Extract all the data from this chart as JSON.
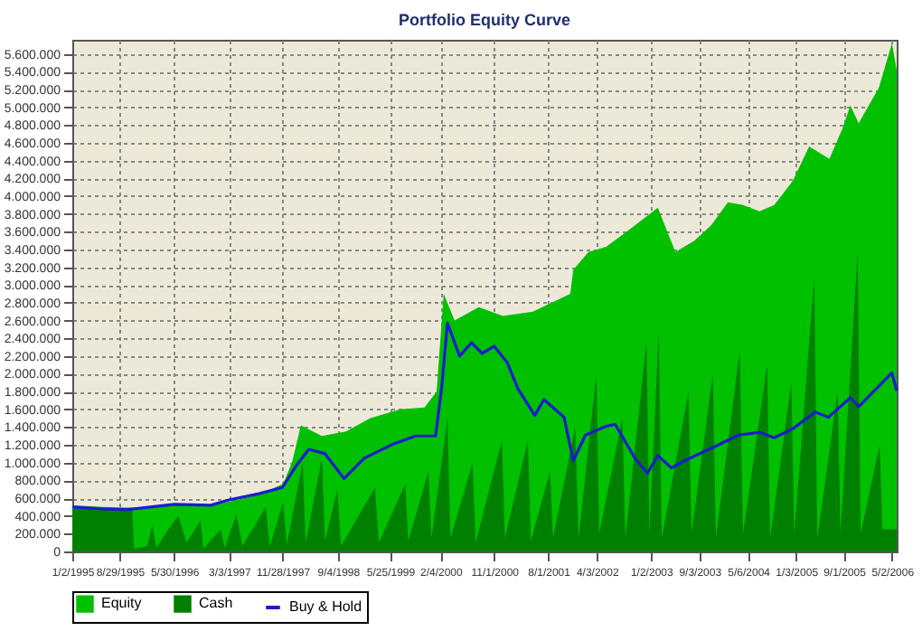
{
  "chart_data": {
    "type": "area",
    "title": "Portfolio Equity Curve",
    "xlim": [
      "1995-01-02",
      "2006-05-26"
    ],
    "xticks": [
      {
        "value": "1995-01-02",
        "label": "1/2/1995"
      },
      {
        "value": "1995-08-29",
        "label": "8/29/1995"
      },
      {
        "value": "1996-05-30",
        "label": "5/30/1996"
      },
      {
        "value": "1997-03-03",
        "label": "3/3/1997"
      },
      {
        "value": "1997-11-28",
        "label": "11/28/1997"
      },
      {
        "value": "1998-09-04",
        "label": "9/4/1998"
      },
      {
        "value": "1999-05-25",
        "label": "5/25/1999"
      },
      {
        "value": "2000-02-04",
        "label": "2/4/2000"
      },
      {
        "value": "2000-11-01",
        "label": "11/1/2000"
      },
      {
        "value": "2001-08-01",
        "label": "8/1/2001"
      },
      {
        "value": "2002-04-03",
        "label": "4/3/2002"
      },
      {
        "value": "2003-01-02",
        "label": "1/2/2003"
      },
      {
        "value": "2003-09-03",
        "label": "9/3/2003"
      },
      {
        "value": "2004-05-06",
        "label": "5/6/2004"
      },
      {
        "value": "2005-01-03",
        "label": "1/3/2005"
      },
      {
        "value": "2005-09-01",
        "label": "9/1/2005"
      },
      {
        "value": "2006-05-02",
        "label": "5/2/2006"
      }
    ],
    "ylim": [
      0,
      5760000
    ],
    "yticks": [
      0,
      {
        "value": 200000,
        "label": "200.000"
      },
      {
        "value": 400000,
        "label": "400.000"
      },
      {
        "value": 600000,
        "label": "600.000"
      },
      {
        "value": 800000,
        "label": "800.000"
      },
      {
        "value": 1000000,
        "label": "1.000.000"
      },
      {
        "value": 1200000,
        "label": "1.200.000"
      },
      {
        "value": 1400000,
        "label": "1.400.000"
      },
      {
        "value": 1600000,
        "label": "1.600.000"
      },
      {
        "value": 1800000,
        "label": "1.800.000"
      },
      {
        "value": 2000000,
        "label": "2.000.000"
      },
      {
        "value": 2200000,
        "label": "2.200.000"
      },
      {
        "value": 2400000,
        "label": "2.400.000"
      },
      {
        "value": 2600000,
        "label": "2.600.000"
      },
      {
        "value": 2800000,
        "label": "2.800.000"
      },
      {
        "value": 3000000,
        "label": "3.000.000"
      },
      {
        "value": 3200000,
        "label": "3.200.000"
      },
      {
        "value": 3400000,
        "label": "3.400.000"
      },
      {
        "value": 3600000,
        "label": "3.600.000"
      },
      {
        "value": 3800000,
        "label": "3.800.000"
      },
      {
        "value": 4000000,
        "label": "4.000.000"
      },
      {
        "value": 4200000,
        "label": "4.200.000"
      },
      {
        "value": 4400000,
        "label": "4.400.000"
      },
      {
        "value": 4600000,
        "label": "4.600.000"
      },
      {
        "value": 4800000,
        "label": "4.800.000"
      },
      {
        "value": 5000000,
        "label": "5.000.000"
      },
      {
        "value": 5200000,
        "label": "5.200.000"
      },
      {
        "value": 5400000,
        "label": "5.400.000"
      },
      {
        "value": 5600000,
        "label": "5.600.000"
      }
    ],
    "grid": true,
    "legend": "bottom",
    "line_style": "solid",
    "series": [
      {
        "name": "Equity",
        "type": "area",
        "color": "#00c000",
        "x": [
          "1995-01-02",
          "1995-06-01",
          "1995-12-01",
          "1996-06-01",
          "1996-12-01",
          "1997-03-03",
          "1997-07-01",
          "1997-10-01",
          "1997-12-01",
          "1998-01-15",
          "1998-03-01",
          "1998-06-15",
          "1998-10-15",
          "1999-02-15",
          "1999-07-15",
          "1999-11-15",
          "2000-01-15",
          "2000-02-20",
          "2000-04-15",
          "2000-08-15",
          "2000-12-15",
          "2001-05-15",
          "2001-11-20",
          "2001-12-05",
          "2002-02-20",
          "2002-05-20",
          "2002-09-01",
          "2003-02-05",
          "2003-05-05",
          "2003-08-10",
          "2003-11-01",
          "2004-01-25",
          "2004-04-10",
          "2004-07-02",
          "2004-09-15",
          "2004-12-17",
          "2005-03-10",
          "2005-06-20",
          "2005-08-25",
          "2005-10-04",
          "2005-11-15",
          "2006-02-25",
          "2006-05-02",
          "2006-05-26"
        ],
        "values": [
          520000,
          500000,
          490000,
          540000,
          520000,
          560000,
          620000,
          700000,
          760000,
          1000000,
          1420000,
          1300000,
          1350000,
          1500000,
          1600000,
          1620000,
          1800000,
          2900000,
          2600000,
          2750000,
          2650000,
          2700000,
          2900000,
          3170000,
          3370000,
          3430000,
          3600000,
          3870000,
          3370000,
          3500000,
          3670000,
          3930000,
          3900000,
          3830000,
          3900000,
          4170000,
          4560000,
          4420000,
          4760000,
          5020000,
          4820000,
          5220000,
          5720000,
          5420000
        ]
      },
      {
        "name": "Cash",
        "type": "area",
        "color": "#008000",
        "x": [
          "1995-01-02",
          "1995-11-01",
          "1995-11-10",
          "1996-01-15",
          "1996-02-10",
          "1996-03-01",
          "1996-05-01",
          "1996-06-20",
          "1996-08-01",
          "1996-10-10",
          "1996-10-25",
          "1997-01-20",
          "1997-02-10",
          "1997-04-10",
          "1997-05-10",
          "1997-09-05",
          "1997-09-25",
          "1997-12-01",
          "1997-12-20",
          "1998-03-10",
          "1998-03-25",
          "1998-06-15",
          "1998-07-01",
          "1998-09-01",
          "1998-09-20",
          "1999-03-10",
          "1999-03-30",
          "1999-08-10",
          "1999-08-25",
          "1999-12-05",
          "1999-12-20",
          "2000-03-10",
          "2000-03-25",
          "2000-07-15",
          "2000-07-30",
          "2000-12-10",
          "2000-12-25",
          "2001-04-20",
          "2001-05-05",
          "2001-08-10",
          "2001-08-25",
          "2001-12-15",
          "2002-01-01",
          "2002-04-01",
          "2002-04-15",
          "2002-08-10",
          "2002-08-25",
          "2002-12-10",
          "2002-12-25",
          "2003-02-10",
          "2003-02-25",
          "2003-07-10",
          "2003-07-25",
          "2003-11-10",
          "2003-11-25",
          "2004-03-25",
          "2004-04-10",
          "2004-08-10",
          "2004-08-25",
          "2004-12-10",
          "2004-12-25",
          "2005-04-05",
          "2005-04-20",
          "2005-08-01",
          "2005-08-15",
          "2005-11-10",
          "2005-11-25",
          "2006-03-01",
          "2006-03-15",
          "2006-05-26"
        ],
        "values": [
          480000,
          480000,
          30000,
          60000,
          300000,
          40000,
          250000,
          400000,
          100000,
          350000,
          30000,
          250000,
          40000,
          420000,
          60000,
          500000,
          50000,
          560000,
          80000,
          1000000,
          100000,
          1050000,
          120000,
          700000,
          60000,
          720000,
          100000,
          760000,
          120000,
          900000,
          150000,
          1500000,
          150000,
          1000000,
          100000,
          1250000,
          150000,
          1250000,
          120000,
          900000,
          150000,
          1400000,
          150000,
          2000000,
          200000,
          1500000,
          150000,
          2370000,
          200000,
          2500000,
          150000,
          1800000,
          200000,
          2000000,
          150000,
          2270000,
          200000,
          2100000,
          150000,
          1900000,
          200000,
          3100000,
          150000,
          1800000,
          200000,
          3370000,
          200000,
          1200000,
          250000,
          250000
        ]
      },
      {
        "name": "Buy & Hold",
        "type": "line",
        "color": "#1c1ccc",
        "x": [
          "1995-01-02",
          "1995-06-01",
          "1995-10-01",
          "1996-05-30",
          "1996-12-01",
          "1997-03-03",
          "1997-08-01",
          "1997-11-28",
          "1998-02-01",
          "1998-04-10",
          "1998-07-01",
          "1998-10-05",
          "1999-01-15",
          "1999-06-01",
          "1999-10-01",
          "2000-01-10",
          "2000-02-10",
          "2000-03-10",
          "2000-05-10",
          "2000-07-10",
          "2000-09-01",
          "2000-11-01",
          "2001-01-05",
          "2001-03-01",
          "2001-05-25",
          "2001-07-10",
          "2001-10-20",
          "2001-12-05",
          "2002-02-05",
          "2002-05-20",
          "2002-07-05",
          "2002-10-15",
          "2002-12-15",
          "2003-02-05",
          "2003-04-15",
          "2003-06-20",
          "2003-11-20",
          "2004-03-20",
          "2004-07-02",
          "2004-09-15",
          "2004-12-17",
          "2005-04-10",
          "2005-06-15",
          "2005-10-04",
          "2005-11-15",
          "2006-05-02",
          "2006-05-26"
        ],
        "values": [
          500000,
          480000,
          470000,
          530000,
          520000,
          580000,
          650000,
          720000,
          950000,
          1150000,
          1100000,
          820000,
          1050000,
          1200000,
          1300000,
          1300000,
          1850000,
          2570000,
          2200000,
          2350000,
          2230000,
          2310000,
          2130000,
          1830000,
          1530000,
          1710000,
          1510000,
          1020000,
          1310000,
          1410000,
          1430000,
          1040000,
          880000,
          1080000,
          940000,
          1020000,
          1180000,
          1310000,
          1340000,
          1280000,
          1380000,
          1570000,
          1510000,
          1730000,
          1630000,
          2010000,
          1810000
        ]
      }
    ]
  }
}
